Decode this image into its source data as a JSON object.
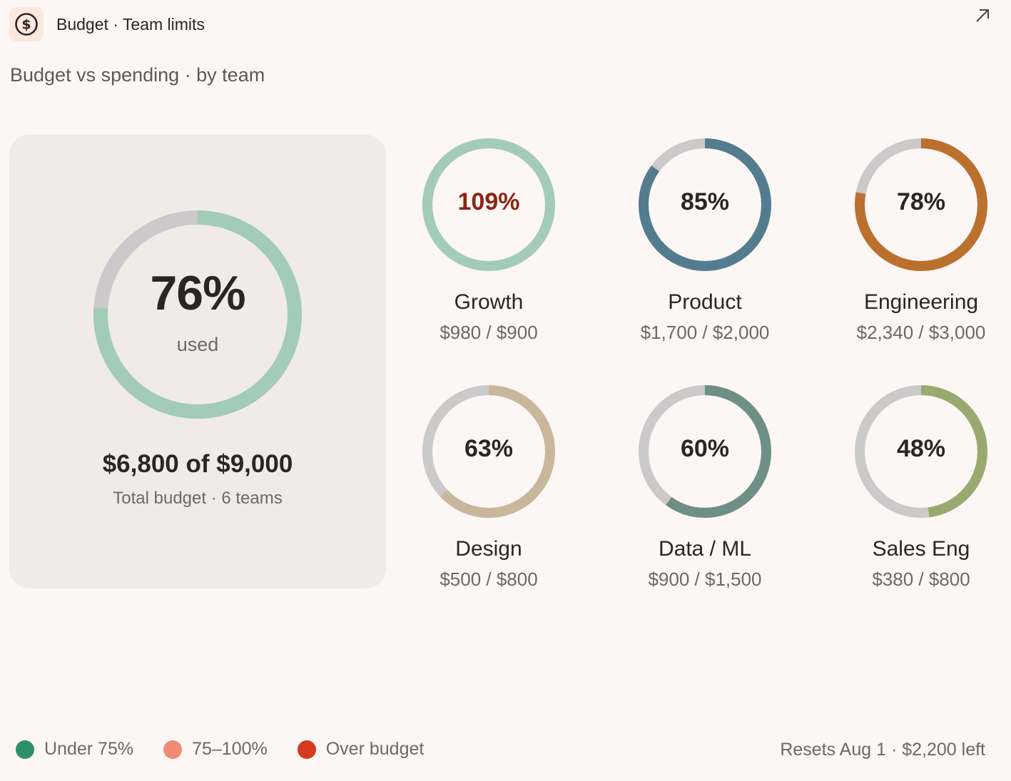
{
  "header": {
    "title": "Budget · Team limits",
    "app_icon": "dollar-circle-icon",
    "expand_icon": "arrow-up-right-icon"
  },
  "subtitle": "Budget vs spending · by team",
  "summary": {
    "percent_label": "76%",
    "percent_value": 0.76,
    "used_label": "used",
    "total": "$6,800 of $9,000",
    "subtitle": "Total budget · 6 teams",
    "ring_color": "#a2ccb5"
  },
  "teams": [
    {
      "name": "Growth",
      "amount": "$980 / $900",
      "percent_label": "109%",
      "percent_value": 1.09,
      "color": "#a2ccb5",
      "over": true
    },
    {
      "name": "Product",
      "amount": "$1,700 / $2,000",
      "percent_label": "85%",
      "percent_value": 0.85,
      "color": "#537d8f",
      "over": false
    },
    {
      "name": "Engineering",
      "amount": "$2,340 / $3,000",
      "percent_label": "78%",
      "percent_value": 0.78,
      "color": "#bb702d",
      "over": false
    },
    {
      "name": "Design",
      "amount": "$500 / $800",
      "percent_label": "63%",
      "percent_value": 0.63,
      "color": "#c9b79c",
      "over": false
    },
    {
      "name": "Data / ML",
      "amount": "$900 / $1,500",
      "percent_label": "60%",
      "percent_value": 0.6,
      "color": "#6d8f85",
      "over": false
    },
    {
      "name": "Sales Eng",
      "amount": "$380 / $800",
      "percent_label": "48%",
      "percent_value": 0.48,
      "color": "#98aa6f",
      "over": false
    }
  ],
  "legend": [
    {
      "label": "Under 75%",
      "color": "#2e9068"
    },
    {
      "label": "75–100%",
      "color": "#f18a72"
    },
    {
      "label": "Over budget",
      "color": "#d63a20"
    }
  ],
  "footer_text": "Resets Aug 1 · $2,200 left",
  "colors": {
    "track": "#cbc9c9",
    "background": "#fcf6f5",
    "card": "#f0ebe7"
  }
}
